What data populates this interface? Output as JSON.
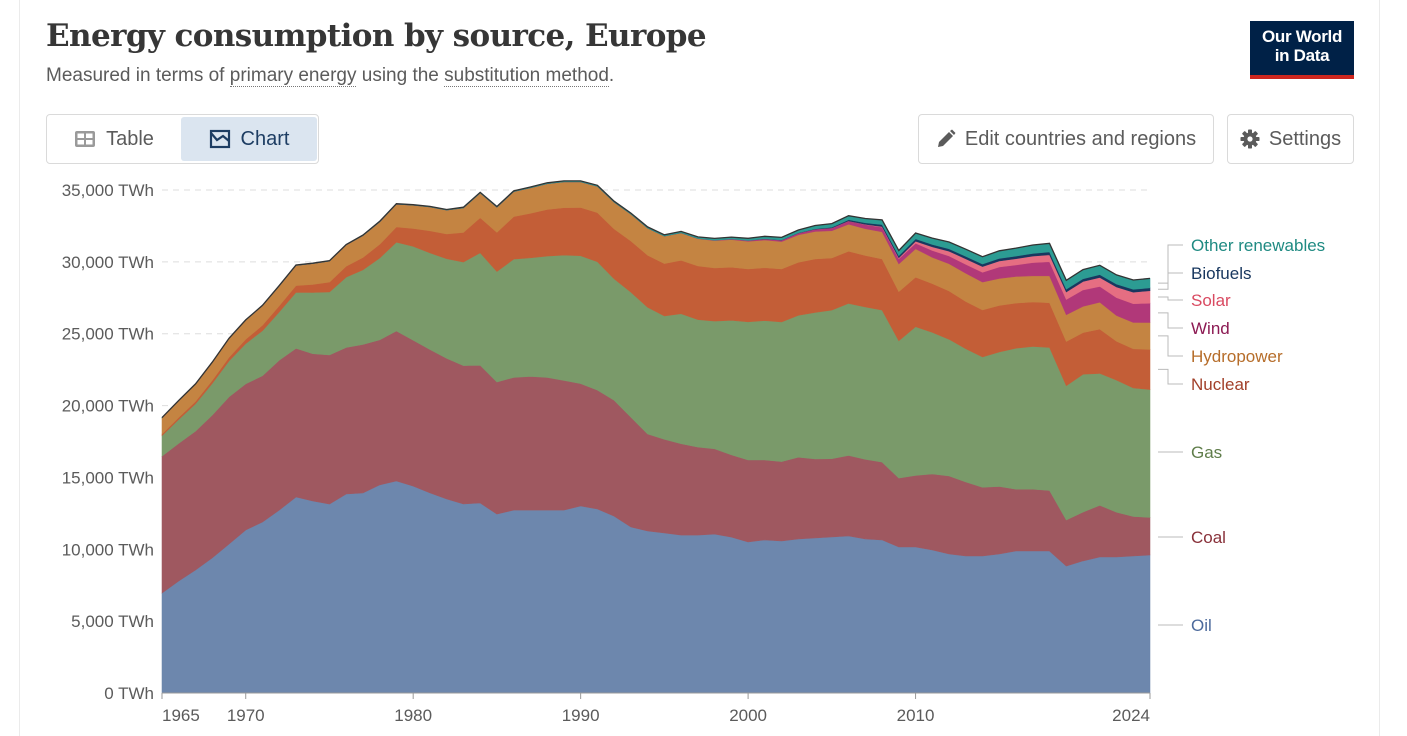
{
  "header": {
    "title": "Energy consumption by source, Europe",
    "subtitle_parts": [
      "Measured in terms of ",
      "primary energy",
      " using the ",
      "substitution method",
      "."
    ],
    "logo_line1": "Our World",
    "logo_line2": "in Data",
    "logo_bg": "#002147",
    "logo_accent": "#ce261e"
  },
  "tabs": [
    {
      "label": "Table",
      "icon": "table-icon",
      "active": false
    },
    {
      "label": "Chart",
      "icon": "chart-icon",
      "active": true
    }
  ],
  "buttons": {
    "edit": {
      "label": "Edit countries and regions",
      "icon": "pencil-icon"
    },
    "settings": {
      "label": "Settings",
      "icon": "gear-icon"
    }
  },
  "chart_data": {
    "type": "area",
    "stacked": true,
    "title": "Energy consumption by source, Europe",
    "subtitle": "Measured in terms of primary energy using the substitution method.",
    "xlabel": "",
    "ylabel": "",
    "unit": "TWh",
    "ylim": [
      0,
      35000
    ],
    "yticks": [
      0,
      5000,
      10000,
      15000,
      20000,
      25000,
      30000,
      35000
    ],
    "ytick_labels": [
      "0 TWh",
      "5,000 TWh",
      "10,000 TWh",
      "15,000 TWh",
      "20,000 TWh",
      "25,000 TWh",
      "30,000 TWh",
      "35,000 TWh"
    ],
    "xlim": [
      1965,
      2024
    ],
    "xticks": [
      1965,
      1970,
      1980,
      1990,
      2000,
      2010,
      2024
    ],
    "xtick_labels": [
      "1965",
      "1970",
      "1980",
      "1990",
      "2000",
      "2010",
      "2024"
    ],
    "grid": "horizontal-dashed",
    "legend": "right (labels at series end)",
    "x": [
      1965,
      1966,
      1967,
      1968,
      1969,
      1970,
      1971,
      1972,
      1973,
      1974,
      1975,
      1976,
      1977,
      1978,
      1979,
      1980,
      1981,
      1982,
      1983,
      1984,
      1985,
      1986,
      1987,
      1988,
      1989,
      1990,
      1991,
      1992,
      1993,
      1994,
      1995,
      1996,
      1997,
      1998,
      1999,
      2000,
      2001,
      2002,
      2003,
      2004,
      2005,
      2006,
      2007,
      2008,
      2009,
      2010,
      2011,
      2012,
      2013,
      2014,
      2015,
      2016,
      2017,
      2018,
      2019,
      2020,
      2021,
      2022,
      2023,
      2024
    ],
    "series": [
      {
        "name": "Oil",
        "color": "#6d87ad",
        "values": [
          6960,
          7790,
          8560,
          9400,
          10370,
          11340,
          11900,
          12730,
          13640,
          13360,
          13150,
          13850,
          13920,
          14480,
          14750,
          14400,
          13920,
          13500,
          13150,
          13220,
          12450,
          12730,
          12730,
          12730,
          12730,
          13010,
          12800,
          12310,
          11550,
          11270,
          11130,
          10990,
          10990,
          11060,
          10850,
          10510,
          10650,
          10580,
          10720,
          10790,
          10860,
          10930,
          10720,
          10650,
          10160,
          10160,
          9950,
          9670,
          9530,
          9530,
          9670,
          9880,
          9880,
          9880,
          8840,
          9190,
          9460,
          9460,
          9530,
          9600
        ]
      },
      {
        "name": "Coal",
        "color": "#9f5860",
        "values": [
          9520,
          9580,
          9660,
          9930,
          10230,
          10170,
          10180,
          10420,
          10340,
          10250,
          10370,
          10190,
          10330,
          10090,
          10440,
          10150,
          9980,
          9780,
          9630,
          9580,
          9190,
          9230,
          9300,
          9230,
          9020,
          8520,
          8280,
          8060,
          7640,
          6750,
          6520,
          6360,
          6120,
          5930,
          5720,
          5700,
          5560,
          5520,
          5690,
          5500,
          5440,
          5600,
          5540,
          5420,
          4790,
          4980,
          5290,
          5430,
          5150,
          4780,
          4700,
          4300,
          4300,
          4210,
          3200,
          3400,
          3600,
          3120,
          2750,
          2620
        ]
      },
      {
        "name": "Gas",
        "color": "#7a9a6a",
        "values": [
          1430,
          1670,
          1900,
          2210,
          2510,
          2800,
          3140,
          3370,
          3900,
          4260,
          4380,
          4900,
          5190,
          5700,
          6180,
          6530,
          6720,
          6940,
          7210,
          7830,
          7690,
          8230,
          8250,
          8440,
          8720,
          8900,
          8930,
          8450,
          8700,
          8820,
          8580,
          9040,
          8870,
          8890,
          9360,
          9620,
          9700,
          9720,
          9870,
          10190,
          10340,
          10580,
          10600,
          10570,
          9560,
          10350,
          9850,
          9510,
          9280,
          9080,
          9360,
          9810,
          9940,
          9960,
          9340,
          9590,
          9180,
          9190,
          8950,
          8900
        ]
      },
      {
        "name": "Nuclear",
        "color": "#c35e37",
        "values": [
          110,
          140,
          170,
          210,
          250,
          300,
          370,
          420,
          470,
          560,
          690,
          760,
          860,
          950,
          1060,
          1240,
          1540,
          1720,
          2060,
          2440,
          2720,
          2960,
          3100,
          3240,
          3300,
          3350,
          3420,
          3470,
          3560,
          3620,
          3650,
          3720,
          3740,
          3700,
          3700,
          3670,
          3680,
          3680,
          3690,
          3720,
          3630,
          3630,
          3580,
          3560,
          3420,
          3440,
          3400,
          3360,
          3280,
          3270,
          3240,
          3140,
          3090,
          3110,
          3080,
          2900,
          3080,
          2700,
          2720,
          2790
        ]
      },
      {
        "name": "Hydropower",
        "color": "#c48442",
        "values": [
          1120,
          1160,
          1200,
          1250,
          1300,
          1330,
          1360,
          1380,
          1400,
          1450,
          1460,
          1480,
          1530,
          1560,
          1580,
          1620,
          1660,
          1660,
          1700,
          1720,
          1750,
          1740,
          1770,
          1800,
          1800,
          1790,
          1830,
          1860,
          1870,
          1890,
          1910,
          1900,
          1890,
          1900,
          1920,
          1930,
          1930,
          1910,
          1910,
          1920,
          1900,
          1880,
          1870,
          1890,
          1930,
          1980,
          1830,
          1900,
          1970,
          1930,
          1880,
          1860,
          1820,
          1870,
          1860,
          1830,
          1870,
          1800,
          1840,
          1870
        ]
      },
      {
        "name": "Wind",
        "color": "#b13879",
        "values": [
          0,
          0,
          0,
          0,
          0,
          0,
          0,
          0,
          0,
          0,
          0,
          0,
          0,
          0,
          0,
          0,
          0,
          0,
          0,
          0,
          0,
          0,
          0,
          0,
          0,
          0,
          0,
          0,
          0,
          0,
          0,
          10,
          20,
          30,
          40,
          60,
          80,
          100,
          120,
          150,
          180,
          220,
          280,
          320,
          350,
          390,
          470,
          540,
          620,
          680,
          790,
          800,
          920,
          980,
          1060,
          1140,
          1100,
          1240,
          1300,
          1340
        ]
      },
      {
        "name": "Solar",
        "color": "#e56e82",
        "values": [
          0,
          0,
          0,
          0,
          0,
          0,
          0,
          0,
          0,
          0,
          0,
          0,
          0,
          0,
          0,
          0,
          0,
          0,
          0,
          0,
          0,
          0,
          0,
          0,
          0,
          0,
          0,
          0,
          0,
          0,
          0,
          0,
          0,
          0,
          0,
          0,
          0,
          0,
          0,
          0,
          10,
          10,
          20,
          40,
          70,
          140,
          260,
          330,
          380,
          400,
          420,
          430,
          450,
          480,
          520,
          580,
          620,
          740,
          800,
          870
        ]
      },
      {
        "name": "Biofuels",
        "color": "#18375f",
        "values": [
          0,
          0,
          0,
          0,
          0,
          0,
          0,
          0,
          0,
          0,
          0,
          0,
          0,
          0,
          0,
          0,
          0,
          0,
          0,
          0,
          0,
          0,
          0,
          0,
          0,
          0,
          0,
          0,
          0,
          0,
          0,
          0,
          0,
          0,
          0,
          0,
          10,
          10,
          20,
          30,
          50,
          80,
          110,
          140,
          150,
          160,
          160,
          170,
          170,
          180,
          180,
          180,
          190,
          200,
          200,
          190,
          200,
          200,
          200,
          200
        ]
      },
      {
        "name": "Other renewables",
        "color": "#2c9c93",
        "values": [
          20,
          20,
          20,
          20,
          20,
          20,
          30,
          30,
          30,
          30,
          30,
          30,
          30,
          40,
          40,
          40,
          40,
          40,
          50,
          50,
          50,
          50,
          60,
          60,
          60,
          60,
          70,
          70,
          70,
          80,
          90,
          100,
          110,
          120,
          130,
          150,
          170,
          180,
          200,
          230,
          250,
          280,
          300,
          330,
          360,
          410,
          440,
          470,
          500,
          510,
          530,
          560,
          580,
          600,
          620,
          640,
          650,
          640,
          650,
          660
        ]
      }
    ]
  }
}
